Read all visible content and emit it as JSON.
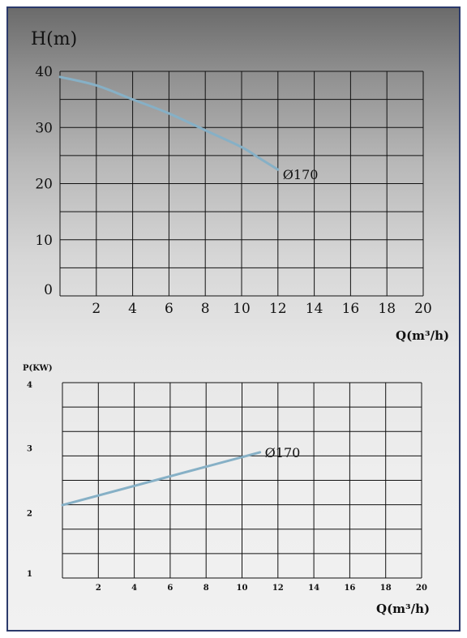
{
  "chart_data": [
    {
      "type": "line",
      "ylabel": "H(m)",
      "xlabel": "Q(m³/h)",
      "xlim": [
        0,
        20
      ],
      "ylim": [
        0,
        40
      ],
      "x_ticks": [
        "2",
        "4",
        "6",
        "8",
        "10",
        "12",
        "14",
        "16",
        "18",
        "20"
      ],
      "y_ticks": [
        "0",
        "10",
        "20",
        "30",
        "40"
      ],
      "grid": true,
      "series": [
        {
          "name": "Ø170",
          "color": "#86b0c6",
          "x": [
            0,
            2,
            4,
            6,
            8,
            10,
            11,
            12
          ],
          "y": [
            39.0,
            37.5,
            35.0,
            32.5,
            29.5,
            26.5,
            24.5,
            22.5
          ]
        }
      ]
    },
    {
      "type": "line",
      "ylabel": "P(KW)",
      "xlabel": "Q(m³/h)",
      "xlim": [
        0,
        20
      ],
      "ylim": [
        1,
        4
      ],
      "x_ticks": [
        "2",
        "4",
        "6",
        "8",
        "10",
        "12",
        "14",
        "16",
        "18",
        "20"
      ],
      "y_ticks": [
        "1",
        "2",
        "3",
        "4"
      ],
      "grid": true,
      "series": [
        {
          "name": "Ø170",
          "color": "#86b0c6",
          "x": [
            0,
            11
          ],
          "y": [
            2.12,
            2.93
          ]
        }
      ]
    }
  ]
}
